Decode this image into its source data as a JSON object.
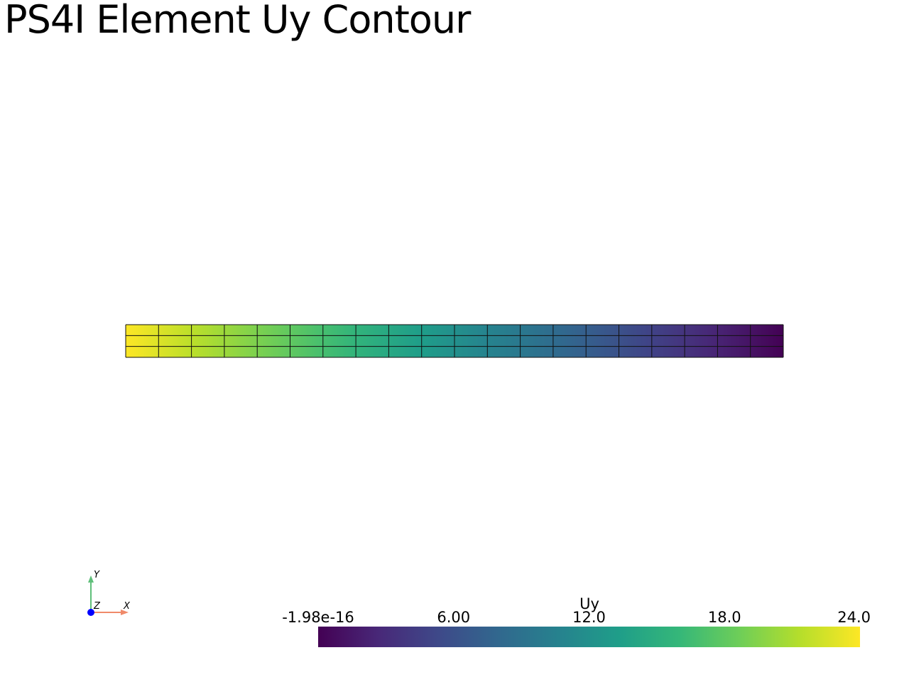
{
  "chart_data": {
    "type": "heatmap",
    "title": "PS4I Element Uy Contour",
    "field": "Uy",
    "mesh": {
      "columns": 20,
      "rows": 3,
      "values_left_to_right": [
        24.0,
        0.0
      ]
    },
    "colorbar": {
      "title": "Uy",
      "range": [
        -1.98e-16,
        24.0
      ],
      "tick_labels": [
        "-1.98e-16",
        "6.00",
        "12.0",
        "18.0",
        "24.0"
      ],
      "tick_values": [
        -1.98e-16,
        6.0,
        12.0,
        18.0,
        24.0
      ],
      "colormap": [
        "#440154",
        "#482878",
        "#3e4989",
        "#31688e",
        "#26828e",
        "#1f9e89",
        "#35b779",
        "#6ece58",
        "#b5de2b",
        "#fde725"
      ]
    },
    "orientation_axes": {
      "labels": [
        "Y",
        "Z",
        "X"
      ],
      "colors": {
        "y": "#5fbf7a",
        "x": "#f08a6a",
        "z": "#0000ff"
      }
    }
  }
}
